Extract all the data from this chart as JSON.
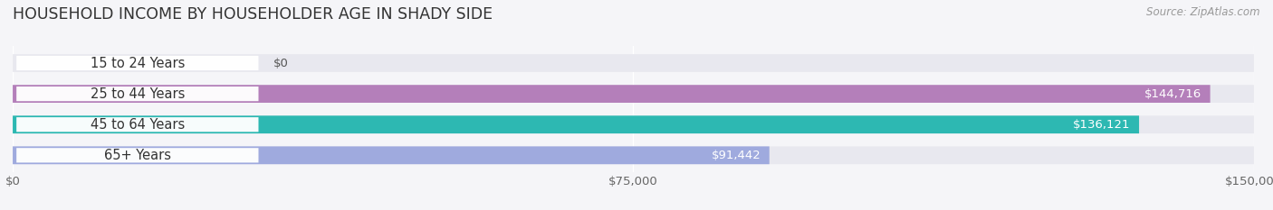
{
  "title": "HOUSEHOLD INCOME BY HOUSEHOLDER AGE IN SHADY SIDE",
  "source": "Source: ZipAtlas.com",
  "categories": [
    "15 to 24 Years",
    "25 to 44 Years",
    "45 to 64 Years",
    "65+ Years"
  ],
  "values": [
    0,
    144716,
    136121,
    91442
  ],
  "bar_colors": [
    "#aab9e8",
    "#b47fba",
    "#2db8b2",
    "#9faade"
  ],
  "bar_bg_color": "#e8e8ef",
  "value_labels": [
    "$0",
    "$144,716",
    "$136,121",
    "$91,442"
  ],
  "x_ticks": [
    0,
    75000,
    150000
  ],
  "x_tick_labels": [
    "$0",
    "$75,000",
    "$150,000"
  ],
  "xlim": [
    0,
    150000
  ],
  "title_fontsize": 12.5,
  "source_fontsize": 8.5,
  "label_fontsize": 10.5,
  "value_fontsize": 9.5,
  "tick_fontsize": 9.5,
  "background_color": "#f5f5f8",
  "bar_height": 0.58,
  "figsize": [
    14.06,
    2.33
  ]
}
